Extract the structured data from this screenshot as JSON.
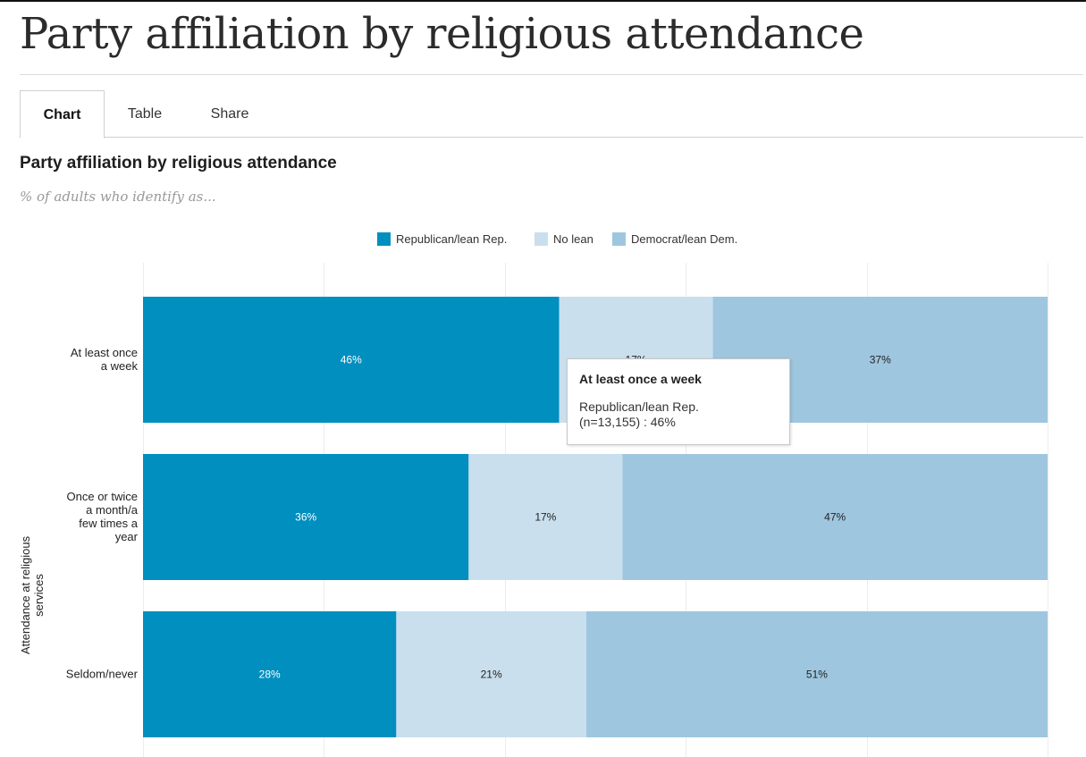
{
  "page": {
    "title": "Party affiliation by religious attendance"
  },
  "tabs": [
    {
      "label": "Chart",
      "active": true
    },
    {
      "label": "Table",
      "active": false
    },
    {
      "label": "Share",
      "active": false
    }
  ],
  "tooltip": {
    "title": "At least once a week",
    "series": "Republican/lean Rep.",
    "value": "(n=13,155) : 46%"
  },
  "colors": {
    "republican": "#008fbf",
    "no_lean": "#c9dfed",
    "democrat": "#9fc6df",
    "grid": "#ececec"
  },
  "chart_data": {
    "type": "bar",
    "orientation": "horizontal",
    "stacked": true,
    "title": "Party affiliation by religious attendance",
    "subtitle": "% of adults who identify as...",
    "ylabel": "Attendance at religious services",
    "xlabel": "",
    "xlim": [
      0,
      100
    ],
    "grid": true,
    "legend_position": "top-center",
    "categories": [
      [
        "At least once",
        "a week"
      ],
      [
        "Once or twice",
        "a month/a",
        "few times a",
        "year"
      ],
      [
        "Seldom/never"
      ]
    ],
    "series": [
      {
        "name": "Republican/lean Rep.",
        "color": "#008fbf",
        "label_color": "#ffffff",
        "values": [
          46,
          36,
          28
        ]
      },
      {
        "name": "No lean",
        "color": "#c9dfed",
        "label_color": "#222222",
        "values": [
          17,
          17,
          21
        ]
      },
      {
        "name": "Democrat/lean Dem.",
        "color": "#9fc6df",
        "label_color": "#222222",
        "values": [
          37,
          47,
          51
        ]
      }
    ]
  }
}
